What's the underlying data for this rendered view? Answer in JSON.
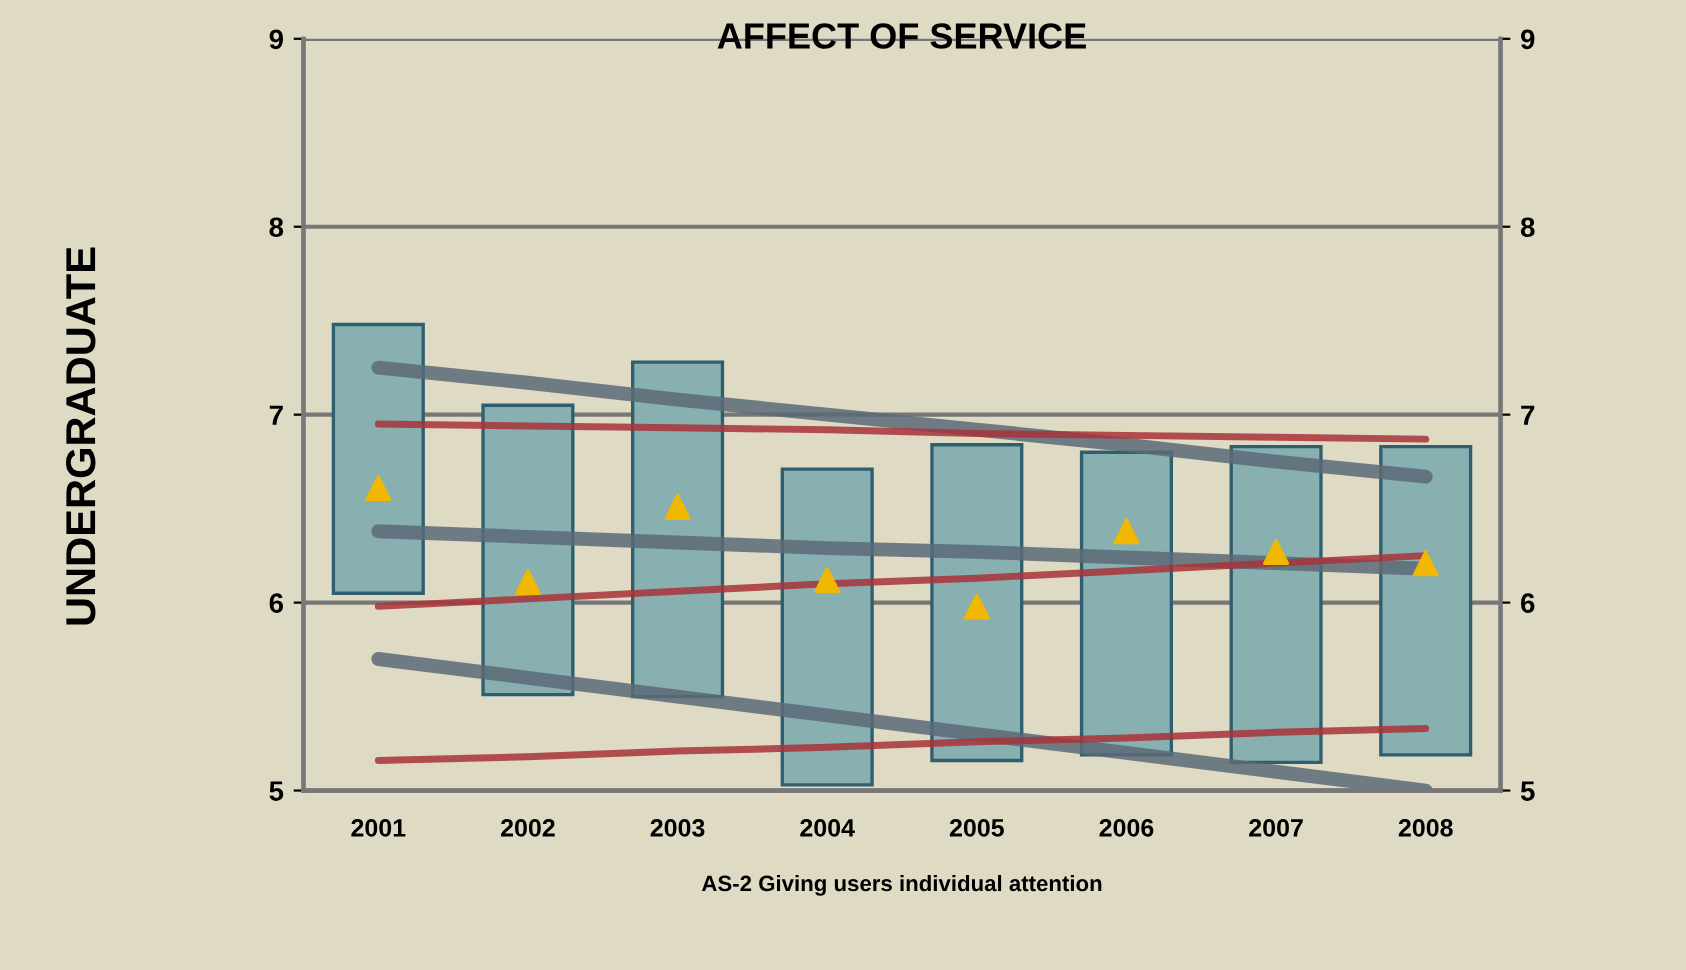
{
  "chart_data": {
    "type": "bar",
    "title": "AFFECT OF SERVICE",
    "ylabel": "UNDERGRADUATE",
    "xlabel": "AS-2 Giving users individual attention",
    "categories": [
      "2001",
      "2002",
      "2003",
      "2004",
      "2005",
      "2006",
      "2007",
      "2008"
    ],
    "series": [
      {
        "color": "#88b0b0",
        "base": [
          6.05,
          5.51,
          5.5,
          5.03,
          5.16,
          5.19,
          5.15,
          5.19
        ],
        "values": [
          1.43,
          1.54,
          1.78,
          1.68,
          1.68,
          1.61,
          1.68,
          1.64
        ]
      },
      {
        "type": "scatter",
        "color": "#f0b800",
        "marker": "triangle",
        "values": [
          6.61,
          6.11,
          6.51,
          6.12,
          5.98,
          6.38,
          6.27,
          6.21
        ]
      },
      {
        "type": "line",
        "color": "#5a6a78",
        "values": [
          7.25,
          7.17,
          7.08,
          7.0,
          6.92,
          6.84,
          6.75,
          6.67
        ]
      },
      {
        "type": "line",
        "color": "#5a6a78",
        "values": [
          6.38,
          6.35,
          6.32,
          6.29,
          6.27,
          6.24,
          6.21,
          6.18
        ]
      },
      {
        "type": "line",
        "color": "#5a6a78",
        "values": [
          5.7,
          5.6,
          5.5,
          5.4,
          5.3,
          5.2,
          5.1,
          5.0
        ]
      },
      {
        "type": "line",
        "color": "#a8323a",
        "values": [
          6.95,
          6.94,
          6.93,
          6.92,
          6.9,
          6.89,
          6.88,
          6.87
        ]
      },
      {
        "type": "line",
        "color": "#a8323a",
        "values": [
          5.98,
          6.02,
          6.06,
          6.1,
          6.13,
          6.17,
          6.21,
          6.25
        ]
      },
      {
        "type": "line",
        "color": "#a8323a",
        "values": [
          5.16,
          5.18,
          5.21,
          5.23,
          5.26,
          5.28,
          5.31,
          5.33
        ]
      }
    ],
    "ylim": [
      5,
      9
    ],
    "yticks": [
      5,
      6,
      7,
      8,
      9
    ],
    "y2lim": [
      5,
      9
    ],
    "y2ticks": [
      5,
      6,
      7,
      8,
      9
    ],
    "grid": "y"
  }
}
